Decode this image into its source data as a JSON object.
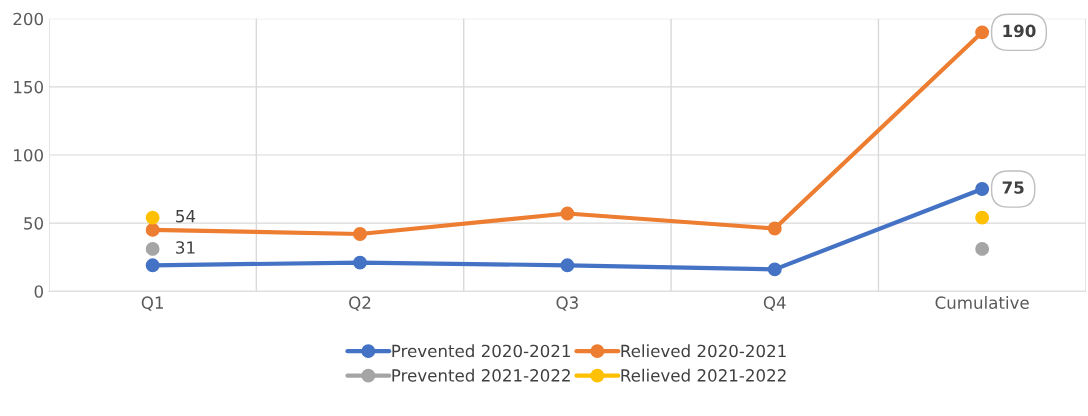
{
  "chart_data": {
    "type": "line",
    "categories": [
      "Q1",
      "Q2",
      "Q3",
      "Q4",
      "Cumulative"
    ],
    "series": [
      {
        "name": "Prevented 2020-2021",
        "color": "#4472c4",
        "values": [
          19,
          21,
          19,
          16,
          75
        ],
        "value_labels": [
          null,
          null,
          null,
          null,
          "75"
        ]
      },
      {
        "name": "Relieved 2020-2021",
        "color": "#ed7d31",
        "values": [
          45,
          42,
          57,
          46,
          190
        ],
        "value_labels": [
          null,
          null,
          null,
          null,
          "190"
        ]
      },
      {
        "name": "Prevented 2021-2022",
        "type": "scatter",
        "color": "#a5a5a5",
        "values": [
          31,
          null,
          null,
          null,
          31
        ],
        "value_labels": [
          "31",
          null,
          null,
          null,
          null
        ]
      },
      {
        "name": "Relieved 2021-2022",
        "type": "scatter",
        "color": "#ffc000",
        "values": [
          54,
          null,
          null,
          null,
          54
        ],
        "value_labels": [
          "54",
          null,
          null,
          null,
          null
        ]
      }
    ],
    "ylim": [
      0,
      200
    ],
    "yticks": [
      0,
      50,
      100,
      150,
      200
    ],
    "grid": true,
    "legend": "bottom",
    "marker": "circle",
    "line_style": "solid"
  }
}
